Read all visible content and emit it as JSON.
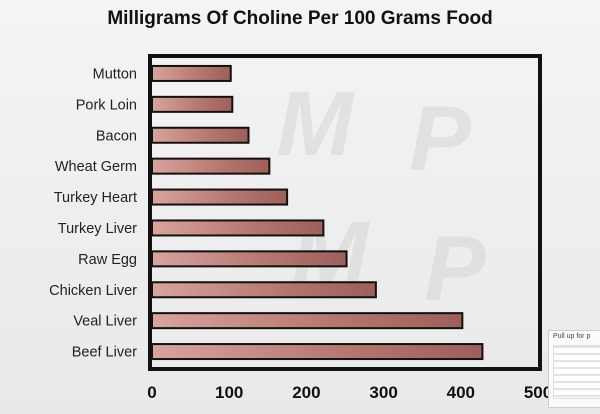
{
  "chart_data": {
    "type": "bar",
    "orientation": "horizontal",
    "title": "Milligrams Of Choline Per 100 Grams Food",
    "xlabel": "",
    "ylabel": "",
    "categories": [
      "Mutton",
      "Pork Loin",
      "Bacon",
      "Wheat Germ",
      "Turkey Heart",
      "Turkey Liver",
      "Raw Egg",
      "Chicken Liver",
      "Veal Liver",
      "Beef Liver"
    ],
    "values": [
      102,
      104,
      125,
      152,
      175,
      222,
      252,
      290,
      402,
      428
    ],
    "xlim": [
      0,
      500
    ],
    "xticks": [
      "0",
      "100",
      "200",
      "300",
      "400",
      "500"
    ],
    "grid": false,
    "legend": "none",
    "colors": {
      "bar_fill": "#c08a82",
      "bar_outline": "#111111",
      "frame": "#111111",
      "watermark": "#d6d6d6"
    }
  },
  "watermark": {
    "letters": [
      "M",
      "P",
      "M",
      "P"
    ]
  },
  "corner_thumbnail": {
    "caption": "Pull up for p"
  }
}
